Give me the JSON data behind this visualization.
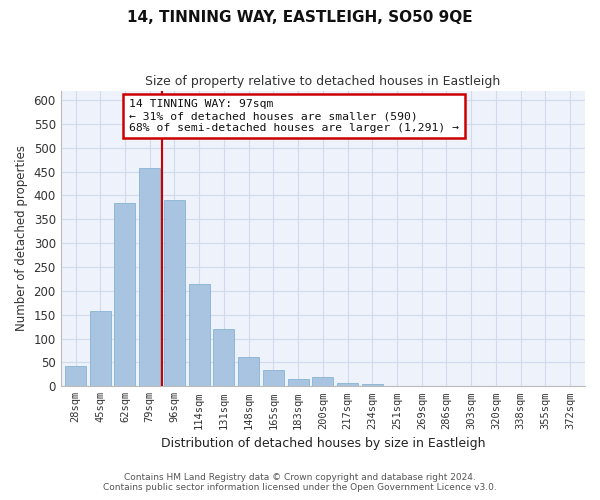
{
  "title": "14, TINNING WAY, EASTLEIGH, SO50 9QE",
  "subtitle": "Size of property relative to detached houses in Eastleigh",
  "xlabel": "Distribution of detached houses by size in Eastleigh",
  "ylabel": "Number of detached properties",
  "bar_labels": [
    "28sqm",
    "45sqm",
    "62sqm",
    "79sqm",
    "96sqm",
    "114sqm",
    "131sqm",
    "148sqm",
    "165sqm",
    "183sqm",
    "200sqm",
    "217sqm",
    "234sqm",
    "251sqm",
    "269sqm",
    "286sqm",
    "303sqm",
    "320sqm",
    "338sqm",
    "355sqm",
    "372sqm"
  ],
  "bar_values": [
    42,
    157,
    385,
    458,
    390,
    214,
    120,
    62,
    35,
    16,
    19,
    6,
    5,
    0,
    0,
    0,
    0,
    0,
    0,
    0,
    0
  ],
  "vline_position": 4,
  "bar_color": "#a8c4e0",
  "vline_color": "#cc0000",
  "ylim": [
    0,
    620
  ],
  "yticks": [
    0,
    50,
    100,
    150,
    200,
    250,
    300,
    350,
    400,
    450,
    500,
    550,
    600
  ],
  "annotation_title": "14 TINNING WAY: 97sqm",
  "annotation_line1": "← 31% of detached houses are smaller (590)",
  "annotation_line2": "68% of semi-detached houses are larger (1,291) →",
  "footer_line1": "Contains HM Land Registry data © Crown copyright and database right 2024.",
  "footer_line2": "Contains public sector information licensed under the Open Government Licence v3.0.",
  "grid_color": "#d0dcee",
  "background_color": "#eef2fa",
  "ann_box_color": "#cc0000"
}
